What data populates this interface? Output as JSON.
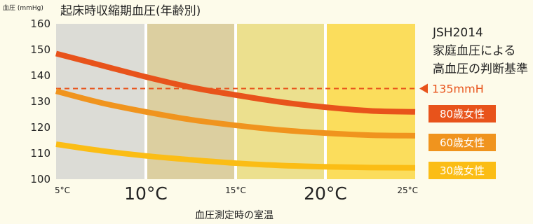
{
  "chart_data": {
    "type": "line",
    "title": "起床時収縮期血圧(年齢別)",
    "ylabel": "血圧 (mmHg)",
    "xlabel": "血圧測定時の室温",
    "ylim": [
      100,
      160
    ],
    "yticks": [
      100,
      110,
      120,
      130,
      140,
      150,
      160
    ],
    "xlim": [
      5,
      25
    ],
    "xticks": [
      {
        "value": 5,
        "label": "5°C",
        "size": "small"
      },
      {
        "value": 10,
        "label": "10°C",
        "size": "big"
      },
      {
        "value": 15,
        "label": "15°C",
        "size": "small"
      },
      {
        "value": 20,
        "label": "20°C",
        "size": "big"
      },
      {
        "value": 25,
        "label": "25°C",
        "size": "small"
      }
    ],
    "bands": [
      {
        "from": 5,
        "to": 10,
        "color": "#dcdcd6"
      },
      {
        "from": 10,
        "to": 15,
        "color": "#dccfa0"
      },
      {
        "from": 15,
        "to": 20,
        "color": "#ece08e"
      },
      {
        "from": 20,
        "to": 25,
        "color": "#fbdd5c"
      }
    ],
    "series": [
      {
        "name": "80歳女性",
        "color": "#e8531b",
        "x": [
          5,
          7.5,
          10,
          12.5,
          15,
          17.5,
          20,
          22.5,
          25
        ],
        "values": [
          148.5,
          144,
          139.5,
          135.5,
          132.5,
          129.8,
          127.8,
          126.4,
          126
        ]
      },
      {
        "name": "60歳女性",
        "color": "#f0941e",
        "x": [
          5,
          7.5,
          10,
          12.5,
          15,
          17.5,
          20,
          22.5,
          25
        ],
        "values": [
          134,
          129.5,
          126,
          123,
          120.8,
          119,
          117.8,
          117,
          116.8
        ]
      },
      {
        "name": "30歳女性",
        "color": "#fbbd15",
        "x": [
          5,
          7.5,
          10,
          12.5,
          15,
          17.5,
          20,
          22.5,
          25
        ],
        "values": [
          113.5,
          111,
          109,
          107.5,
          106.2,
          105.3,
          104.8,
          104.5,
          104.4
        ]
      }
    ],
    "reference": {
      "value": 135,
      "label": "135mmH",
      "color": "#e8531b"
    },
    "annotation": [
      "JSH2014",
      "家庭血圧による",
      "高血圧の判断基準"
    ],
    "grid": false,
    "legend": "right"
  }
}
